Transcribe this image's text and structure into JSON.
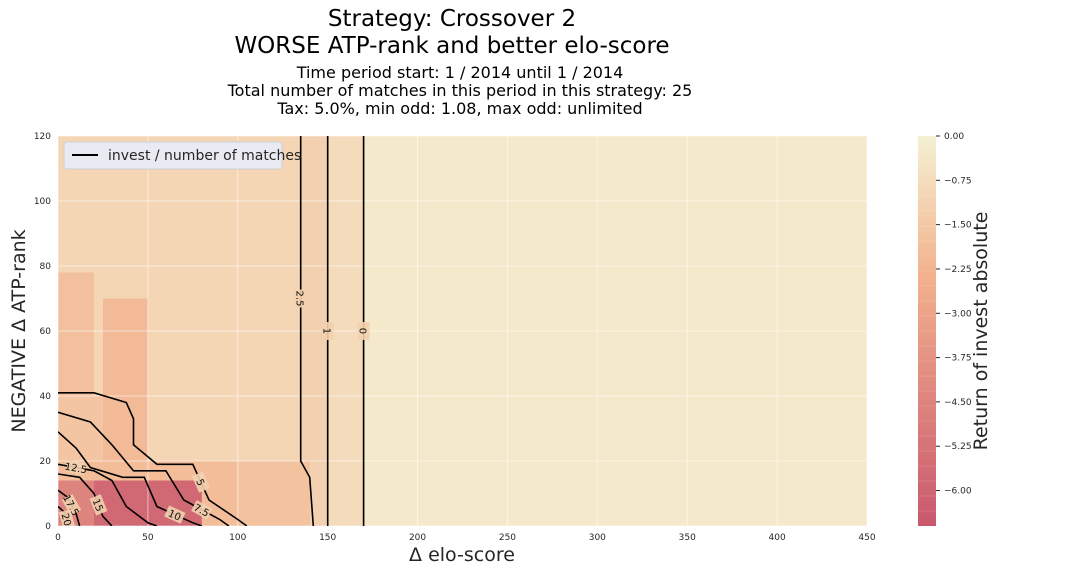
{
  "chart_data": {
    "type": "heatmap",
    "title": "Strategy: Crossover 2",
    "title2": "WORSE ATP-rank and better elo-score",
    "subtitle_lines": [
      "Time period start: 1 / 2014 until 1 / 2014",
      "Total number of matches in this period in this strategy: 25",
      "Tax: 5.0%, min odd: 1.08, max odd: unlimited"
    ],
    "xlabel": "Δ elo-score",
    "ylabel": "NEGATIVE Δ ATP-rank",
    "xlim": [
      0,
      450
    ],
    "ylim": [
      0,
      120
    ],
    "xticks": [
      0,
      50,
      100,
      150,
      200,
      250,
      300,
      350,
      400,
      450
    ],
    "yticks": [
      0,
      20,
      40,
      60,
      80,
      100,
      120
    ],
    "grid": true,
    "legend": {
      "placement": "top-left",
      "entries": [
        "invest / number of matches"
      ]
    },
    "colorbar": {
      "label": "Return of invest absolute",
      "range": [
        -6.6,
        0
      ],
      "ticks": [
        "0.00",
        "−0.75",
        "−1.50",
        "−2.25",
        "−3.00",
        "−3.75",
        "−4.50",
        "−5.25",
        "−6.00"
      ],
      "tick_values": [
        0,
        -0.75,
        -1.5,
        -2.25,
        -3.0,
        -3.75,
        -4.5,
        -5.25,
        -6.0
      ],
      "color_top": "#f4f1d3",
      "color_mid": "#f3b28e",
      "color_bottom": "#c9586e"
    },
    "regions": [
      {
        "x": [
          0,
          450
        ],
        "y": [
          0,
          120
        ],
        "value": -0.3
      },
      {
        "x": [
          0,
          170
        ],
        "y": [
          0,
          120
        ],
        "value": -0.8
      },
      {
        "x": [
          0,
          150
        ],
        "y": [
          0,
          120
        ],
        "value": -1.2
      },
      {
        "x": [
          0,
          135
        ],
        "y": [
          0,
          120
        ],
        "value": -1.0
      },
      {
        "x": [
          0,
          20
        ],
        "y": [
          0,
          78
        ],
        "value": -1.8
      },
      {
        "x": [
          25,
          50
        ],
        "y": [
          20,
          70
        ],
        "value": -2.0
      },
      {
        "x": [
          0,
          140
        ],
        "y": [
          0,
          20
        ],
        "value": -1.9
      },
      {
        "x": [
          20,
          80
        ],
        "y": [
          0,
          14
        ],
        "value": -5.8
      },
      {
        "x": [
          0,
          20
        ],
        "y": [
          0,
          14
        ],
        "value": -4.5
      },
      {
        "x": [
          0,
          25
        ],
        "y": [
          20,
          40
        ],
        "value": -1.6
      },
      {
        "x": [
          100,
          140
        ],
        "y": [
          0,
          20
        ],
        "value": -1.7
      }
    ],
    "contours": [
      {
        "label": "0",
        "points": [
          [
            170,
            120
          ],
          [
            170,
            0
          ]
        ]
      },
      {
        "label": "1",
        "points": [
          [
            150,
            120
          ],
          [
            150,
            0
          ]
        ]
      },
      {
        "label": "2.5",
        "points": [
          [
            135,
            120
          ],
          [
            135,
            20
          ],
          [
            140,
            15
          ],
          [
            142,
            0
          ]
        ]
      },
      {
        "label": "5",
        "points": [
          [
            0,
            41
          ],
          [
            20,
            41
          ],
          [
            38,
            38
          ],
          [
            42,
            33
          ],
          [
            42,
            25
          ],
          [
            55,
            19
          ],
          [
            75,
            19
          ],
          [
            84,
            8
          ],
          [
            100,
            2
          ],
          [
            105,
            0
          ]
        ]
      },
      {
        "label": "7.5",
        "points": [
          [
            0,
            35
          ],
          [
            18,
            32
          ],
          [
            30,
            25
          ],
          [
            42,
            17
          ],
          [
            60,
            17
          ],
          [
            70,
            8
          ],
          [
            90,
            2
          ],
          [
            95,
            0
          ]
        ]
      },
      {
        "label": "10",
        "points": [
          [
            0,
            29
          ],
          [
            10,
            24
          ],
          [
            18,
            18
          ],
          [
            36,
            15
          ],
          [
            48,
            15
          ],
          [
            55,
            6
          ],
          [
            75,
            1
          ],
          [
            80,
            0
          ]
        ]
      },
      {
        "label": "12.5",
        "points": [
          [
            0,
            19
          ],
          [
            20,
            17
          ],
          [
            30,
            14
          ],
          [
            38,
            6
          ],
          [
            50,
            1
          ],
          [
            55,
            0
          ]
        ]
      },
      {
        "label": "15",
        "points": [
          [
            0,
            16
          ],
          [
            12,
            15
          ],
          [
            20,
            10
          ],
          [
            25,
            3
          ],
          [
            30,
            0
          ]
        ]
      },
      {
        "label": "17.5",
        "points": [
          [
            0,
            11
          ],
          [
            5,
            9
          ],
          [
            10,
            4
          ],
          [
            12,
            0
          ]
        ]
      },
      {
        "label": "20",
        "points": [
          [
            0,
            6
          ],
          [
            4,
            4
          ],
          [
            6,
            0
          ]
        ]
      }
    ]
  }
}
